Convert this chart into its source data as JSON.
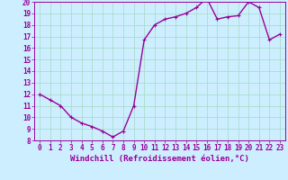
{
  "x": [
    0,
    1,
    2,
    3,
    4,
    5,
    6,
    7,
    8,
    9,
    10,
    11,
    12,
    13,
    14,
    15,
    16,
    17,
    18,
    19,
    20,
    21,
    22,
    23
  ],
  "y": [
    12,
    11.5,
    11,
    10,
    9.5,
    9.2,
    8.8,
    8.3,
    8.8,
    11,
    16.7,
    18,
    18.5,
    18.7,
    19,
    19.5,
    20.3,
    18.5,
    18.7,
    18.8,
    20,
    19.5,
    16.7,
    17.2
  ],
  "line_color": "#990099",
  "marker": "+",
  "marker_size": 3,
  "bg_color": "#cceeff",
  "grid_color": "#aaddcc",
  "xlabel": "Windchill (Refroidissement éolien,°C)",
  "xlim": [
    -0.5,
    23.5
  ],
  "ylim": [
    8,
    20
  ],
  "yticks": [
    8,
    9,
    10,
    11,
    12,
    13,
    14,
    15,
    16,
    17,
    18,
    19,
    20
  ],
  "xticks": [
    0,
    1,
    2,
    3,
    4,
    5,
    6,
    7,
    8,
    9,
    10,
    11,
    12,
    13,
    14,
    15,
    16,
    17,
    18,
    19,
    20,
    21,
    22,
    23
  ],
  "xlabel_fontsize": 6.5,
  "tick_fontsize": 5.5,
  "line_width": 1.0
}
